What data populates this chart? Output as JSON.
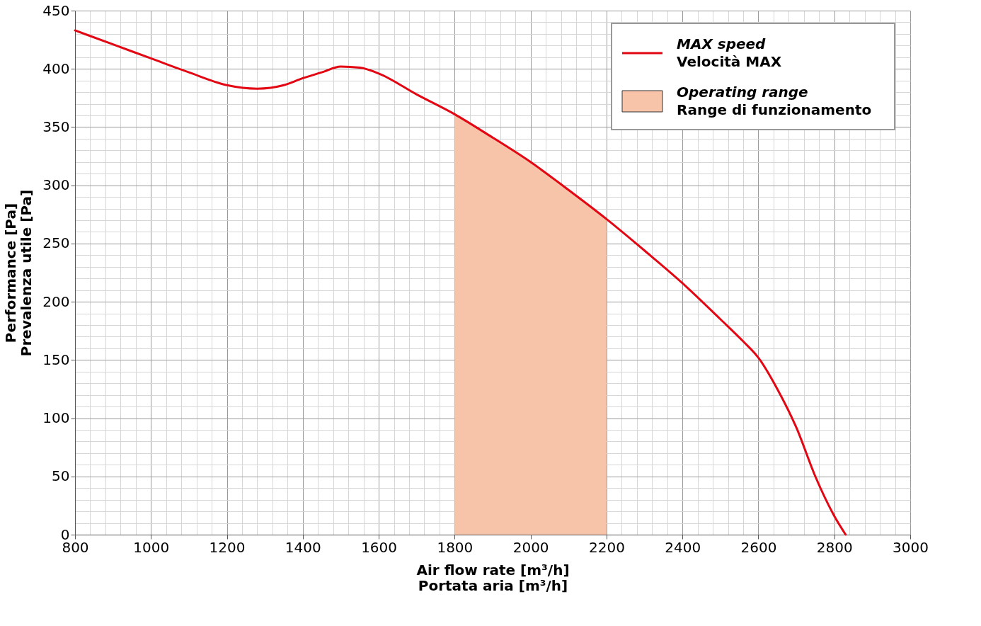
{
  "chart_data": {
    "type": "line",
    "xlabel": "Air flow rate [m³/h]\nPortata aria [m³/h]",
    "ylabel": "Performance [Pa]\nPrevalenza utile [Pa]",
    "xlim": [
      800,
      3000
    ],
    "ylim": [
      0,
      450
    ],
    "xticks": [
      800,
      {
        "value": 840,
        "label": null
      },
      {
        "value": 880,
        "label": null
      },
      {
        "value": 920,
        "label": null
      },
      {
        "value": 960,
        "label": null
      },
      1000,
      {
        "value": 1040,
        "label": null
      },
      {
        "value": 1080,
        "label": null
      },
      {
        "value": 1120,
        "label": null
      },
      {
        "value": 1160,
        "label": null
      },
      1200,
      {
        "value": 1240,
        "label": null
      },
      {
        "value": 1280,
        "label": null
      },
      {
        "value": 1320,
        "label": null
      },
      {
        "value": 1360,
        "label": null
      },
      1400,
      {
        "value": 1440,
        "label": null
      },
      {
        "value": 1480,
        "label": null
      },
      {
        "value": 1520,
        "label": null
      },
      {
        "value": 1560,
        "label": null
      },
      1600,
      {
        "value": 1640,
        "label": null
      },
      {
        "value": 1680,
        "label": null
      },
      {
        "value": 1720,
        "label": null
      },
      {
        "value": 1760,
        "label": null
      },
      1800,
      {
        "value": 1840,
        "label": null
      },
      {
        "value": 1880,
        "label": null
      },
      {
        "value": 1920,
        "label": null
      },
      {
        "value": 1960,
        "label": null
      },
      2000,
      {
        "value": 2040,
        "label": null
      },
      {
        "value": 2080,
        "label": null
      },
      {
        "value": 2120,
        "label": null
      },
      {
        "value": 2160,
        "label": null
      },
      2200,
      {
        "value": 2240,
        "label": null
      },
      {
        "value": 2280,
        "label": null
      },
      {
        "value": 2320,
        "label": null
      },
      {
        "value": 2360,
        "label": null
      },
      2400,
      {
        "value": 2440,
        "label": null
      },
      {
        "value": 2480,
        "label": null
      },
      {
        "value": 2520,
        "label": null
      },
      {
        "value": 2560,
        "label": null
      },
      2600,
      {
        "value": 2640,
        "label": null
      },
      {
        "value": 2680,
        "label": null
      },
      {
        "value": 2720,
        "label": null
      },
      {
        "value": 2760,
        "label": null
      },
      2800,
      {
        "value": 2840,
        "label": null
      },
      {
        "value": 2880,
        "label": null
      },
      {
        "value": 2920,
        "label": null
      },
      {
        "value": 2960,
        "label": null
      },
      3000
    ],
    "yticks": [
      0,
      {
        "value": 10,
        "label": null
      },
      {
        "value": 20,
        "label": null
      },
      {
        "value": 30,
        "label": null
      },
      {
        "value": 40,
        "label": null
      },
      50,
      {
        "value": 60,
        "label": null
      },
      {
        "value": 70,
        "label": null
      },
      {
        "value": 80,
        "label": null
      },
      {
        "value": 90,
        "label": null
      },
      100,
      {
        "value": 110,
        "label": null
      },
      {
        "value": 120,
        "label": null
      },
      {
        "value": 130,
        "label": null
      },
      {
        "value": 140,
        "label": null
      },
      150,
      {
        "value": 160,
        "label": null
      },
      {
        "value": 170,
        "label": null
      },
      {
        "value": 180,
        "label": null
      },
      {
        "value": 190,
        "label": null
      },
      200,
      {
        "value": 210,
        "label": null
      },
      {
        "value": 220,
        "label": null
      },
      {
        "value": 230,
        "label": null
      },
      {
        "value": 240,
        "label": null
      },
      250,
      {
        "value": 260,
        "label": null
      },
      {
        "value": 270,
        "label": null
      },
      {
        "value": 280,
        "label": null
      },
      {
        "value": 290,
        "label": null
      },
      300,
      {
        "value": 310,
        "label": null
      },
      {
        "value": 320,
        "label": null
      },
      {
        "value": 330,
        "label": null
      },
      {
        "value": 340,
        "label": null
      },
      350,
      {
        "value": 360,
        "label": null
      },
      {
        "value": 370,
        "label": null
      },
      {
        "value": 380,
        "label": null
      },
      {
        "value": 390,
        "label": null
      },
      400,
      {
        "value": 410,
        "label": null
      },
      {
        "value": 420,
        "label": null
      },
      {
        "value": 430,
        "label": null
      },
      {
        "value": 440,
        "label": null
      },
      450
    ],
    "grid": true,
    "legend": "top right",
    "series": [
      {
        "name": "Operating range\nRange di funzionamento",
        "type": "area",
        "color": "#f7c3a9",
        "x": [
          1800,
          1900,
          2000,
          2100,
          2200
        ],
        "values": [
          361,
          341,
          320,
          296,
          271
        ]
      },
      {
        "name": "MAX speed\nVelocità MAX",
        "color": "#e30613",
        "x": [
          800,
          900,
          1000,
          1100,
          1200,
          1280,
          1350,
          1400,
          1450,
          1500,
          1550,
          1600,
          1700,
          1800,
          1900,
          2000,
          2100,
          2200,
          2300,
          2400,
          2500,
          2560,
          2600,
          2650,
          2700,
          2750,
          2800,
          2830
        ],
        "values": [
          433,
          421,
          409,
          397,
          386,
          383,
          386,
          392,
          397,
          402,
          401,
          396,
          378,
          361,
          341,
          320,
          296,
          271,
          244,
          216,
          185,
          166,
          152,
          125,
          92,
          50,
          16,
          0
        ]
      }
    ]
  }
}
